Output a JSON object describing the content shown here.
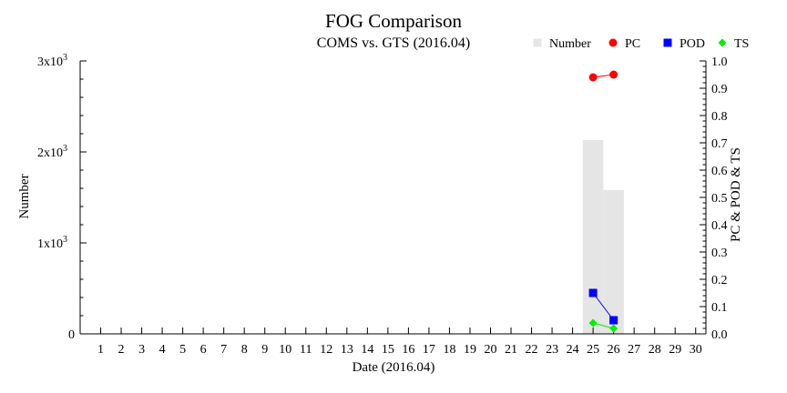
{
  "chart_data": {
    "type": "bar",
    "title": "FOG Comparison",
    "subtitle": "COMS vs. GTS (2016.04)",
    "xlabel": "Date (2016.04)",
    "ylabel_left": "Number",
    "ylabel_right": "PC & POD & TS",
    "categories": [
      "1",
      "2",
      "3",
      "4",
      "5",
      "6",
      "7",
      "8",
      "9",
      "10",
      "11",
      "12",
      "13",
      "14",
      "15",
      "16",
      "17",
      "18",
      "19",
      "20",
      "21",
      "22",
      "23",
      "24",
      "25",
      "26",
      "27",
      "28",
      "29",
      "30"
    ],
    "ylim_left": [
      0,
      3000
    ],
    "ylim_right": [
      0,
      1.0
    ],
    "yticks_left": [
      {
        "value": 0,
        "label": "0"
      },
      {
        "value": 1000,
        "label": "1x10",
        "exp": "3"
      },
      {
        "value": 2000,
        "label": "2x10",
        "exp": "3"
      },
      {
        "value": 3000,
        "label": "3x10",
        "exp": "3"
      }
    ],
    "yticks_right": [
      "0.0",
      "0.1",
      "0.2",
      "0.3",
      "0.4",
      "0.5",
      "0.6",
      "0.7",
      "0.8",
      "0.9",
      "1.0"
    ],
    "grid": false,
    "legend_position": "top-right",
    "series": [
      {
        "name": "Number",
        "kind": "bar",
        "axis": "left",
        "color": "#e5e5e5",
        "points": [
          {
            "x": "25",
            "y": 2130
          },
          {
            "x": "26",
            "y": 1580
          }
        ]
      },
      {
        "name": "PC",
        "kind": "line",
        "axis": "right",
        "color": "#ff0000",
        "marker": "circle",
        "points": [
          {
            "x": "25",
            "y": 0.94
          },
          {
            "x": "26",
            "y": 0.95
          }
        ]
      },
      {
        "name": "POD",
        "kind": "line",
        "axis": "right",
        "color": "#0000ff",
        "marker": "square",
        "points": [
          {
            "x": "25",
            "y": 0.15
          },
          {
            "x": "26",
            "y": 0.05
          }
        ]
      },
      {
        "name": "TS",
        "kind": "line",
        "axis": "right",
        "color": "#00ee00",
        "marker": "diamond",
        "points": [
          {
            "x": "25",
            "y": 0.04
          },
          {
            "x": "26",
            "y": 0.02
          }
        ]
      }
    ]
  }
}
